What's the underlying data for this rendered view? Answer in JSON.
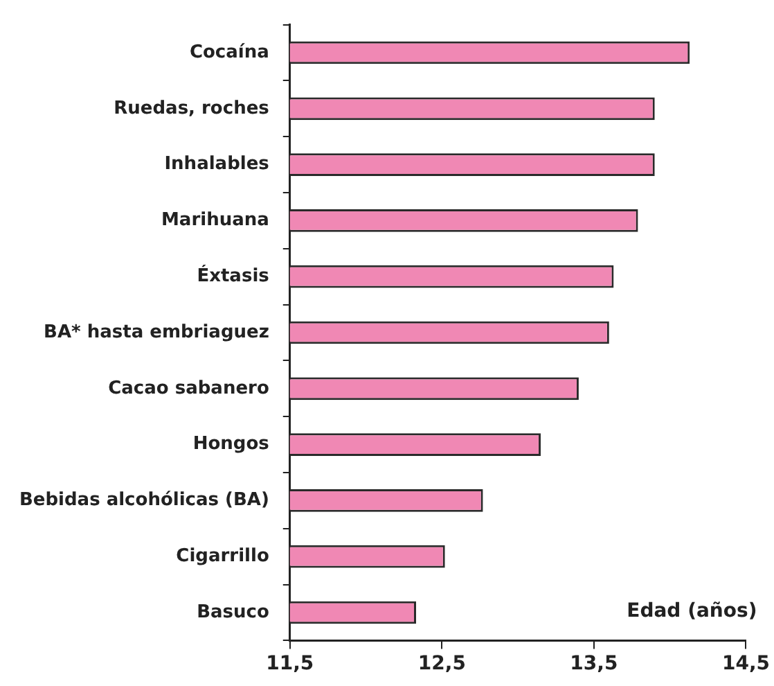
{
  "chart_data": {
    "type": "bar",
    "orientation": "horizontal",
    "xlabel": "Edad (años)",
    "categories": [
      "Cocaína",
      "Ruedas, roches",
      "Inhalables",
      "Marihuana",
      "Éxtasis",
      "BA* hasta embriaguez",
      "Cacao sabanero",
      "Hongos",
      "Bebidas alcohólicas (BA)",
      "Cigarrillo",
      "Basuco"
    ],
    "values": [
      14.13,
      13.9,
      13.9,
      13.79,
      13.63,
      13.6,
      13.4,
      13.15,
      12.77,
      12.52,
      12.33
    ],
    "color": "#f088b4",
    "xlim": [
      11.5,
      14.5
    ],
    "xticks": [
      {
        "value": 11.5,
        "label": "11,5"
      },
      {
        "value": 12.5,
        "label": "12,5"
      },
      {
        "value": 13.5,
        "label": "13,5"
      },
      {
        "value": 14.5,
        "label": "14,5"
      }
    ],
    "grid": false,
    "legend": false
  }
}
